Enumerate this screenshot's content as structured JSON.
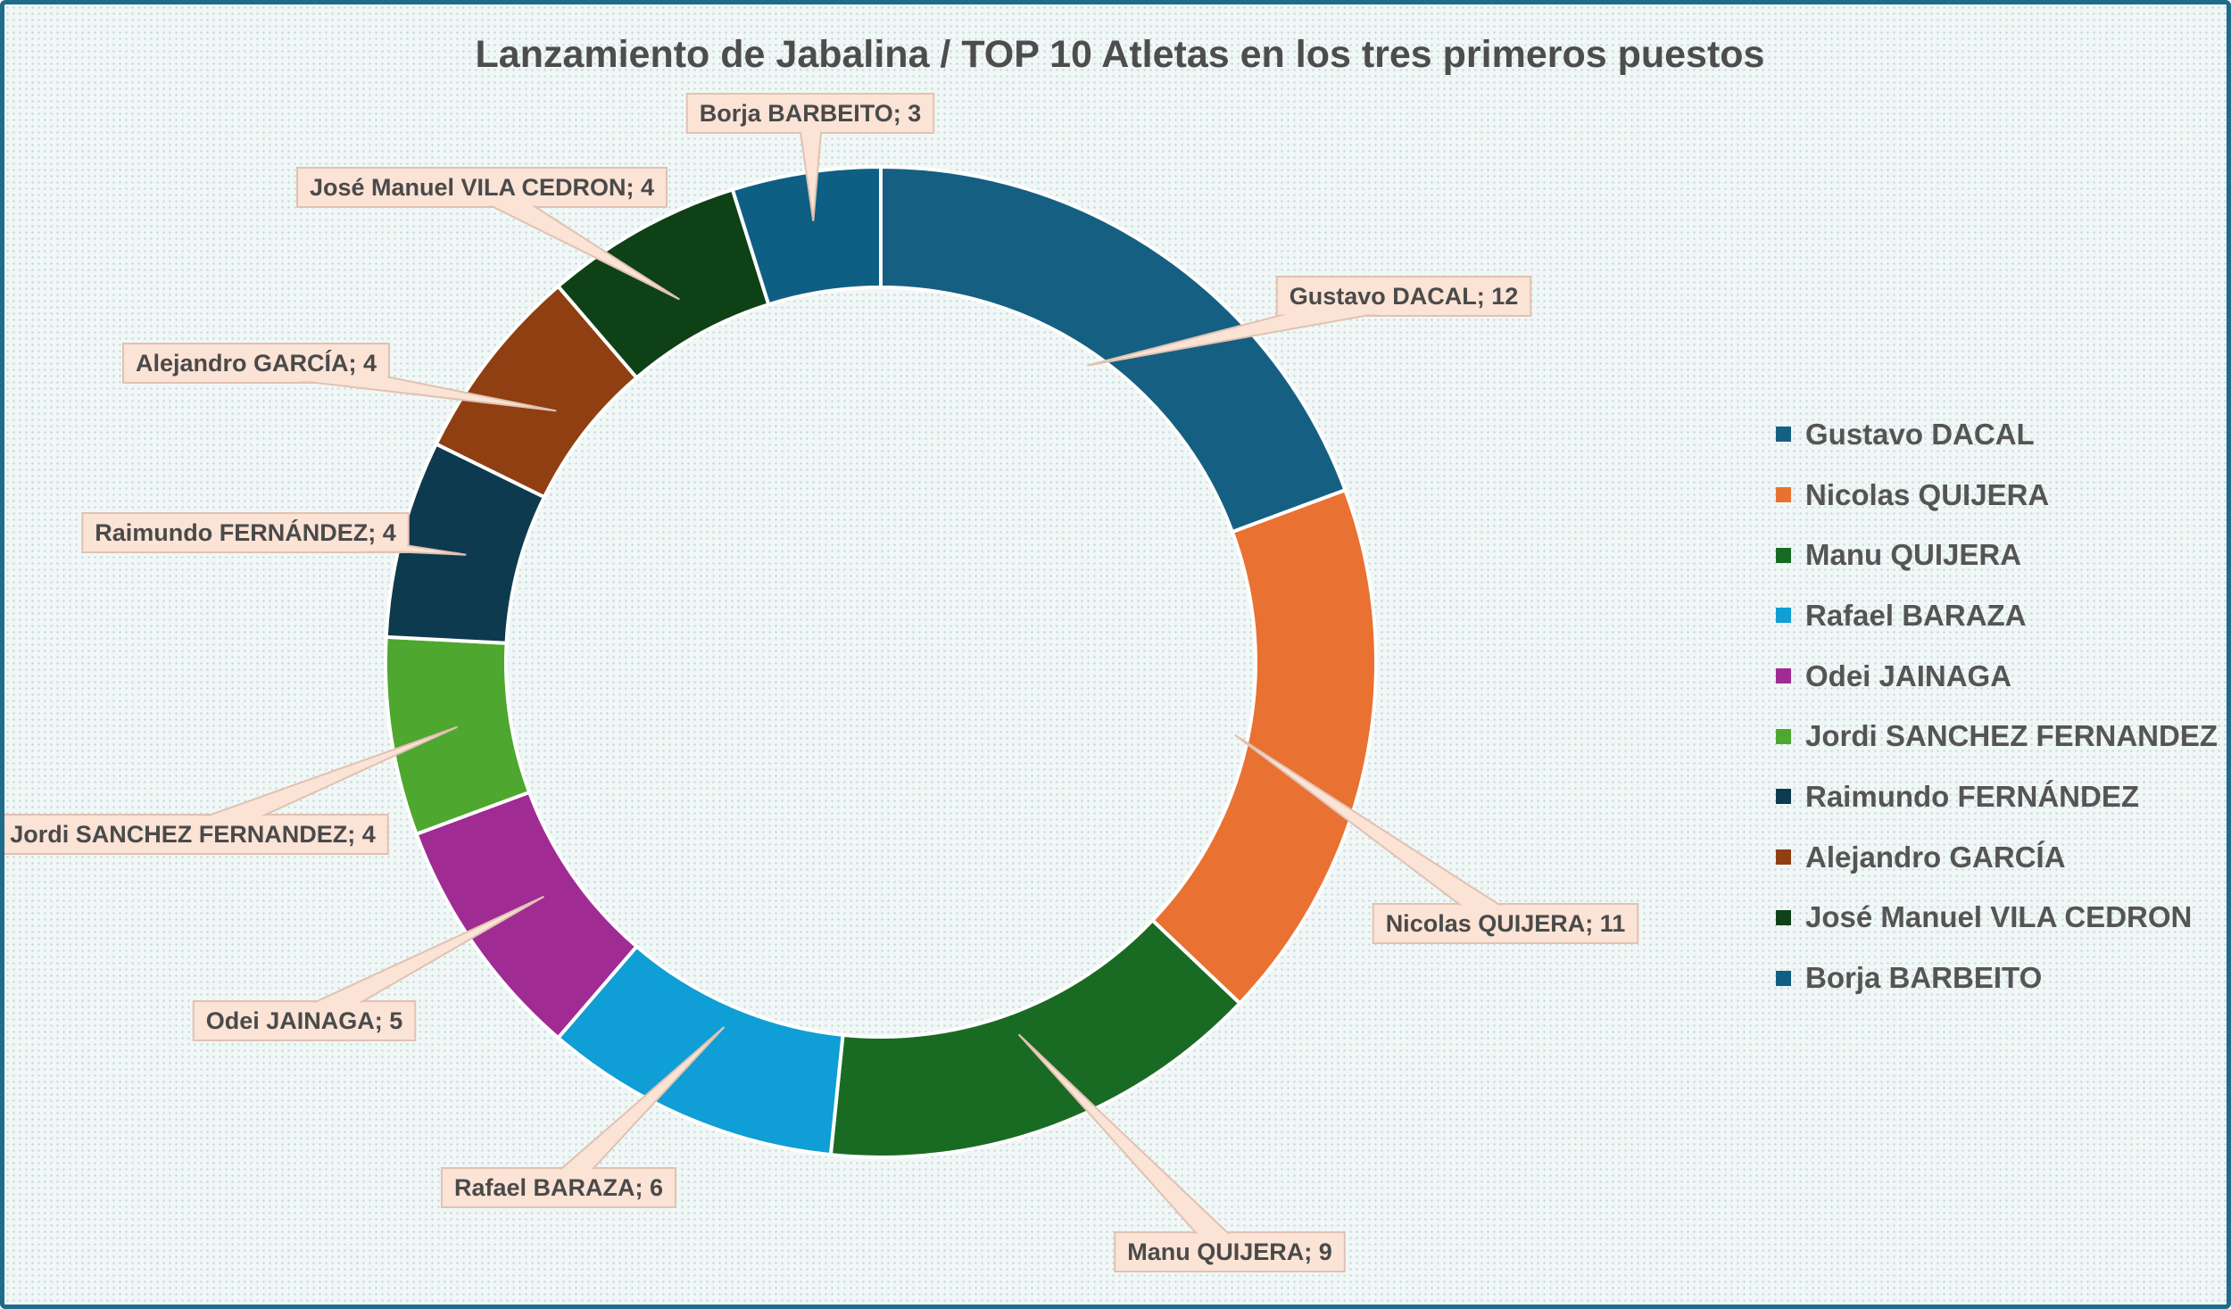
{
  "chart_data": {
    "type": "pie",
    "variant": "doughnut",
    "title": "Lanzamiento de Jabalina / TOP 10 Atletas en los tres primeros puestos",
    "legend_position": "right",
    "data_label_separator": "; ",
    "series": [
      {
        "name": "Gustavo DACAL",
        "value": 12,
        "color": "#156082"
      },
      {
        "name": "Nicolas QUIJERA",
        "value": 11,
        "color": "#e97132"
      },
      {
        "name": "Manu QUIJERA",
        "value": 9,
        "color": "#196b24"
      },
      {
        "name": "Rafael BARAZA",
        "value": 6,
        "color": "#0f9ed5"
      },
      {
        "name": "Odei JAINAGA",
        "value": 5,
        "color": "#a02b93"
      },
      {
        "name": "Jordi SANCHEZ FERNANDEZ",
        "value": 4,
        "color": "#4ea72e"
      },
      {
        "name": "Raimundo FERNÁNDEZ",
        "value": 4,
        "color": "#0d3a4e"
      },
      {
        "name": "Alejandro GARCÍA",
        "value": 4,
        "color": "#8f3f11"
      },
      {
        "name": "José Manuel VILA CEDRON",
        "value": 4,
        "color": "#0f4117"
      },
      {
        "name": "Borja BARBEITO",
        "value": 3,
        "color": "#0e5f83"
      }
    ]
  },
  "colors": {
    "frame_border": "#1e6b8a",
    "callout_fill": "#fbe3d6",
    "callout_border": "#e0c2b2",
    "title_text": "#4d4d4d"
  }
}
